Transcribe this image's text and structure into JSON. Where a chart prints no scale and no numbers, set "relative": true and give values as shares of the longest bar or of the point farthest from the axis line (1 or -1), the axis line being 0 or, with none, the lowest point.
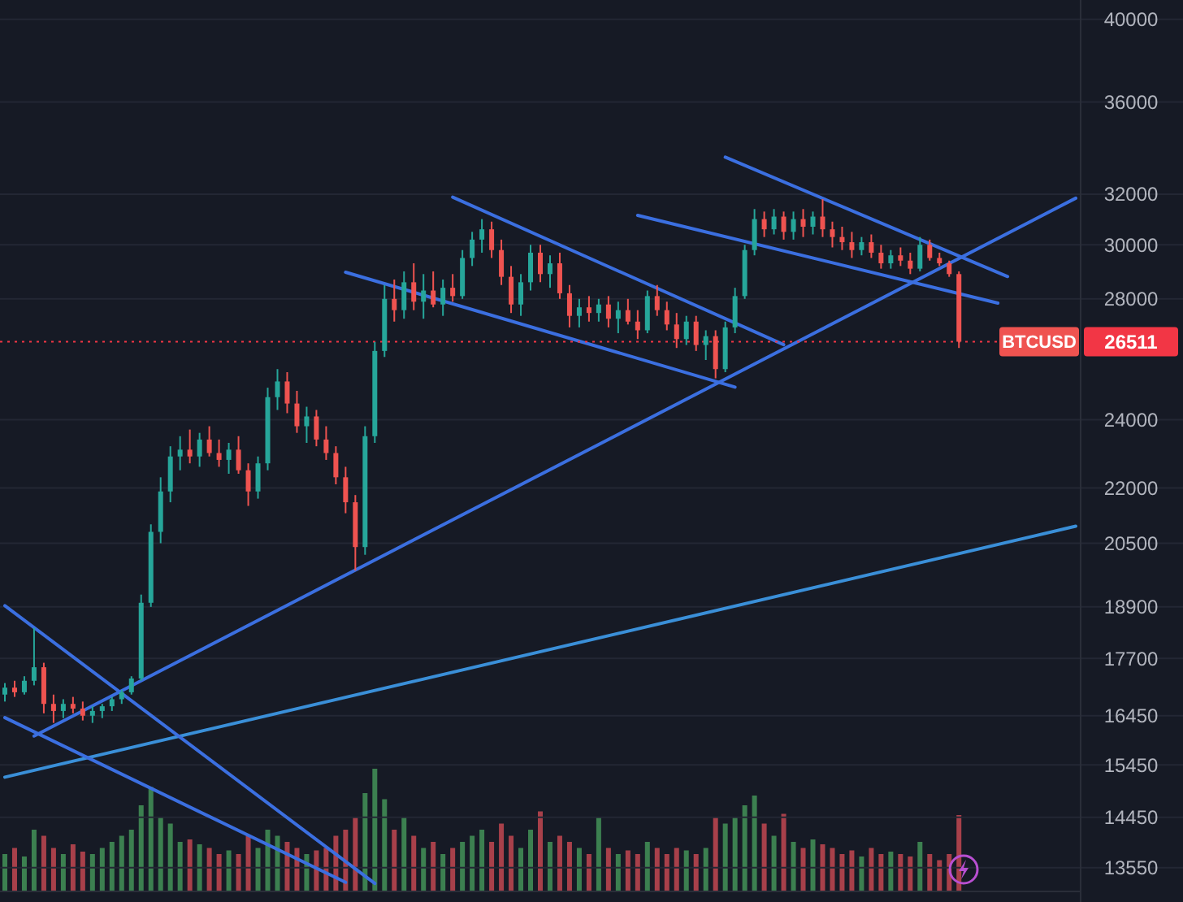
{
  "chart_data": [
    {
      "type": "candlestick",
      "log": true,
      "grid": "y",
      "ylim": [
        12970,
        41000
      ],
      "categories": [
        null,
        null,
        null,
        null,
        null,
        null,
        null,
        null,
        null,
        null,
        null,
        null,
        null,
        null,
        null,
        null,
        null,
        null,
        null,
        null,
        null,
        null,
        null,
        null,
        null,
        null,
        null,
        null,
        null,
        null,
        null,
        null,
        null,
        null,
        null,
        null,
        null,
        null,
        null,
        null,
        null,
        null,
        null,
        null,
        null,
        null,
        null,
        null,
        null,
        null,
        null,
        null,
        null,
        null,
        null,
        null,
        null,
        null,
        null,
        null,
        null,
        null,
        null,
        null,
        null,
        null,
        null,
        null,
        null,
        null,
        null,
        null,
        null,
        null,
        null,
        null,
        null,
        null,
        null,
        null,
        null,
        null,
        null,
        null,
        null,
        null,
        null,
        null,
        null,
        null,
        null,
        null,
        null,
        null,
        null,
        null,
        null,
        null,
        null,
        null,
        null,
        null,
        null,
        null,
        null,
        null,
        null,
        null,
        null,
        null,
        null
      ],
      "yticks": [
        13550,
        14450,
        15450,
        16450,
        17700,
        18900,
        20500,
        22000,
        24000,
        28000,
        30000,
        32000,
        36000,
        40000
      ],
      "ref_lines": [
        {
          "axis": "y",
          "value": 26511,
          "label": "26511",
          "color": "#f23645",
          "line_style": "dotted"
        }
      ],
      "series": [
        {
          "name": "BTCUSD",
          "type": "candlestick",
          "ohlc": [
            [
              16900,
              17150,
              16750,
              17050
            ],
            [
              17050,
              17200,
              16850,
              16950
            ],
            [
              16950,
              17300,
              16900,
              17200
            ],
            [
              17200,
              18400,
              17100,
              17500
            ],
            [
              17500,
              17600,
              16500,
              16700
            ],
            [
              16700,
              16900,
              16300,
              16550
            ],
            [
              16550,
              16800,
              16400,
              16700
            ],
            [
              16700,
              16850,
              16500,
              16600
            ],
            [
              16600,
              16750,
              16350,
              16450
            ],
            [
              16450,
              16650,
              16300,
              16550
            ],
            [
              16550,
              16700,
              16400,
              16650
            ],
            [
              16650,
              16850,
              16550,
              16800
            ],
            [
              16800,
              17000,
              16700,
              16950
            ],
            [
              16950,
              17300,
              16900,
              17250
            ],
            [
              17250,
              19200,
              17200,
              19000
            ],
            [
              19000,
              21000,
              18900,
              20800
            ],
            [
              20800,
              22300,
              20500,
              21900
            ],
            [
              21900,
              23200,
              21600,
              22900
            ],
            [
              22900,
              23500,
              22500,
              23100
            ],
            [
              23100,
              23700,
              22700,
              22900
            ],
            [
              22900,
              23600,
              22600,
              23400
            ],
            [
              23400,
              23800,
              22900,
              23000
            ],
            [
              23000,
              23400,
              22600,
              22800
            ],
            [
              22800,
              23300,
              22400,
              23100
            ],
            [
              23100,
              23500,
              22400,
              22500
            ],
            [
              22500,
              22700,
              21500,
              21900
            ],
            [
              21900,
              22900,
              21700,
              22700
            ],
            [
              22700,
              25000,
              22500,
              24700
            ],
            [
              24700,
              25600,
              24300,
              25200
            ],
            [
              25200,
              25500,
              24200,
              24500
            ],
            [
              24500,
              24900,
              23600,
              23800
            ],
            [
              23800,
              24400,
              23300,
              24100
            ],
            [
              24100,
              24300,
              23200,
              23400
            ],
            [
              23400,
              23800,
              22800,
              23000
            ],
            [
              23000,
              23200,
              22100,
              22300
            ],
            [
              22300,
              22600,
              21300,
              21600
            ],
            [
              21600,
              21800,
              19800,
              20400
            ],
            [
              20400,
              23800,
              20200,
              23500
            ],
            [
              23500,
              26500,
              23300,
              26200
            ],
            [
              26200,
              28500,
              26000,
              28000
            ],
            [
              28000,
              28700,
              27200,
              27600
            ],
            [
              27600,
              29000,
              27300,
              28600
            ],
            [
              28600,
              29300,
              27600,
              27900
            ],
            [
              27900,
              28900,
              27300,
              28300
            ],
            [
              28300,
              29000,
              27700,
              27800
            ],
            [
              27800,
              28700,
              27400,
              28400
            ],
            [
              28400,
              28900,
              27900,
              28100
            ],
            [
              28100,
              29800,
              28000,
              29500
            ],
            [
              29500,
              30500,
              29200,
              30200
            ],
            [
              30200,
              31000,
              29700,
              30600
            ],
            [
              30600,
              30900,
              29500,
              29800
            ],
            [
              29800,
              30200,
              28500,
              28800
            ],
            [
              28800,
              29200,
              27500,
              27800
            ],
            [
              27800,
              28900,
              27400,
              28600
            ],
            [
              28600,
              30000,
              28300,
              29700
            ],
            [
              29700,
              30000,
              28600,
              28900
            ],
            [
              28900,
              29600,
              28400,
              29300
            ],
            [
              29300,
              29700,
              28000,
              28200
            ],
            [
              28200,
              28500,
              27000,
              27400
            ],
            [
              27400,
              28000,
              27000,
              27700
            ],
            [
              27700,
              28100,
              27200,
              27500
            ],
            [
              27500,
              28000,
              27200,
              27800
            ],
            [
              27800,
              28100,
              27000,
              27300
            ],
            [
              27300,
              27900,
              26800,
              27600
            ],
            [
              27600,
              28000,
              27100,
              27200
            ],
            [
              27200,
              27600,
              26600,
              26900
            ],
            [
              26900,
              28300,
              26800,
              28100
            ],
            [
              28100,
              28500,
              27400,
              27600
            ],
            [
              27600,
              27900,
              26900,
              27100
            ],
            [
              27100,
              27500,
              26300,
              26600
            ],
            [
              26600,
              27400,
              26400,
              27200
            ],
            [
              27200,
              27400,
              26200,
              26400
            ],
            [
              26400,
              26900,
              25900,
              26700
            ],
            [
              26700,
              26900,
              25300,
              25600
            ],
            [
              25600,
              27200,
              25500,
              27000
            ],
            [
              27000,
              28400,
              26800,
              28100
            ],
            [
              28100,
              30000,
              28000,
              29800
            ],
            [
              29800,
              31400,
              29600,
              31000
            ],
            [
              31000,
              31300,
              30300,
              30600
            ],
            [
              30600,
              31400,
              30400,
              31100
            ],
            [
              31100,
              31300,
              30200,
              30500
            ],
            [
              30500,
              31300,
              30200,
              31000
            ],
            [
              31000,
              31400,
              30300,
              30700
            ],
            [
              30700,
              31300,
              30400,
              31100
            ],
            [
              31100,
              31800,
              30300,
              30600
            ],
            [
              30600,
              30900,
              29900,
              30300
            ],
            [
              30300,
              30700,
              29800,
              30100
            ],
            [
              30100,
              30500,
              29500,
              29800
            ],
            [
              29800,
              30300,
              29600,
              30100
            ],
            [
              30100,
              30400,
              29500,
              29700
            ],
            [
              29700,
              30000,
              29100,
              29300
            ],
            [
              29300,
              29800,
              29100,
              29600
            ],
            [
              29600,
              29900,
              29200,
              29400
            ],
            [
              29400,
              29700,
              28900,
              29100
            ],
            [
              29100,
              30300,
              29000,
              30000
            ],
            [
              30000,
              30200,
              29400,
              29500
            ],
            [
              29500,
              29700,
              29200,
              29300
            ],
            [
              29300,
              29400,
              28800,
              28900
            ],
            [
              28900,
              29000,
              26300,
              26511
            ],
            null,
            null,
            null,
            null,
            null,
            null,
            null,
            null,
            null,
            null,
            null,
            null
          ],
          "colors": [
            "#26a69a",
            "#ef5350",
            "#26a69a",
            "#26a69a",
            "#ef5350",
            "#ef5350",
            "#26a69a",
            "#ef5350",
            "#ef5350",
            "#26a69a",
            "#26a69a",
            "#26a69a",
            "#26a69a",
            "#26a69a",
            "#26a69a",
            "#26a69a",
            "#26a69a",
            "#26a69a",
            "#26a69a",
            "#ef5350",
            "#26a69a",
            "#ef5350",
            "#ef5350",
            "#26a69a",
            "#ef5350",
            "#ef5350",
            "#26a69a",
            "#26a69a",
            "#26a69a",
            "#ef5350",
            "#ef5350",
            "#26a69a",
            "#ef5350",
            "#ef5350",
            "#ef5350",
            "#ef5350",
            "#ef5350",
            "#26a69a",
            "#26a69a",
            "#26a69a",
            "#ef5350",
            "#26a69a",
            "#ef5350",
            "#26a69a",
            "#ef5350",
            "#26a69a",
            "#ef5350",
            "#26a69a",
            "#26a69a",
            "#26a69a",
            "#ef5350",
            "#ef5350",
            "#ef5350",
            "#26a69a",
            "#26a69a",
            "#ef5350",
            "#26a69a",
            "#ef5350",
            "#ef5350",
            "#26a69a",
            "#ef5350",
            "#26a69a",
            "#ef5350",
            "#26a69a",
            "#ef5350",
            "#ef5350",
            "#26a69a",
            "#ef5350",
            "#ef5350",
            "#ef5350",
            "#26a69a",
            "#ef5350",
            "#26a69a",
            "#ef5350",
            "#26a69a",
            "#26a69a",
            "#26a69a",
            "#26a69a",
            "#ef5350",
            "#26a69a",
            "#ef5350",
            "#26a69a",
            "#ef5350",
            "#26a69a",
            "#ef5350",
            "#ef5350",
            "#ef5350",
            "#ef5350",
            "#26a69a",
            "#ef5350",
            "#ef5350",
            "#26a69a",
            "#ef5350",
            "#ef5350",
            "#26a69a",
            "#ef5350",
            "#ef5350",
            "#ef5350",
            "#ef5350",
            null,
            null,
            null,
            null,
            null,
            null,
            null,
            null,
            null,
            null,
            null,
            null
          ]
        },
        {
          "type": "line",
          "color": "#3b6fe0",
          "values": [
            null,
            null,
            null,
            16030,
            null,
            null,
            null,
            null,
            null,
            null,
            null,
            null,
            null,
            null,
            null,
            null,
            null,
            null,
            null,
            null,
            null,
            null,
            null,
            null,
            null,
            null,
            null,
            null,
            null,
            null,
            null,
            null,
            null,
            null,
            null,
            null,
            null,
            null,
            null,
            null,
            null,
            null,
            null,
            null,
            null,
            null,
            null,
            null,
            null,
            null,
            null,
            null,
            null,
            null,
            null,
            null,
            null,
            null,
            null,
            null,
            null,
            null,
            null,
            null,
            null,
            null,
            null,
            null,
            null,
            null,
            null,
            null,
            null,
            null,
            null,
            null,
            null,
            null,
            null,
            null,
            null,
            null,
            null,
            null,
            null,
            null,
            null,
            null,
            null,
            null,
            null,
            null,
            null,
            null,
            null,
            null,
            null,
            null,
            null,
            null,
            null,
            null,
            null,
            null,
            null,
            null,
            null,
            null,
            null,
            null,
            31840
          ]
        },
        {
          "type": "line",
          "color": "#3a8fd8",
          "values": [
            15210,
            null,
            null,
            null,
            null,
            null,
            null,
            null,
            null,
            null,
            null,
            null,
            null,
            null,
            null,
            null,
            null,
            null,
            null,
            null,
            null,
            null,
            null,
            null,
            null,
            null,
            null,
            null,
            null,
            null,
            null,
            null,
            null,
            null,
            null,
            null,
            null,
            null,
            null,
            null,
            null,
            null,
            null,
            null,
            null,
            null,
            null,
            null,
            null,
            null,
            null,
            null,
            null,
            null,
            null,
            null,
            null,
            null,
            null,
            null,
            null,
            null,
            null,
            null,
            null,
            null,
            null,
            null,
            null,
            null,
            null,
            null,
            null,
            null,
            null,
            null,
            null,
            null,
            null,
            null,
            null,
            null,
            null,
            null,
            null,
            null,
            null,
            null,
            null,
            null,
            null,
            null,
            null,
            null,
            null,
            null,
            null,
            null,
            null,
            null,
            null,
            null,
            null,
            null,
            null,
            null,
            null,
            null,
            null,
            null,
            20950
          ]
        },
        {
          "type": "line",
          "color": "#3b6fe0",
          "values": [
            18930,
            null,
            null,
            null,
            null,
            null,
            null,
            null,
            null,
            null,
            null,
            null,
            null,
            null,
            null,
            null,
            null,
            null,
            null,
            null,
            null,
            null,
            null,
            null,
            null,
            null,
            null,
            null,
            null,
            null,
            null,
            null,
            null,
            null,
            null,
            null,
            null,
            null,
            13280,
            null,
            null,
            null,
            null,
            null,
            null,
            null,
            null,
            null,
            null,
            null,
            null,
            null,
            null,
            null,
            null,
            null,
            null,
            null,
            null,
            null,
            null,
            null,
            null,
            null,
            null,
            null,
            null,
            null,
            null,
            null,
            null,
            null,
            null,
            null,
            null,
            null,
            null,
            null,
            null,
            null,
            null,
            null,
            null,
            null,
            null,
            null,
            null,
            null,
            null,
            null,
            null,
            null,
            null,
            null,
            null,
            null,
            null,
            null,
            null,
            null,
            null,
            null,
            null,
            null,
            null,
            null,
            null,
            null,
            null,
            null,
            null
          ]
        },
        {
          "type": "line",
          "color": "#3b6fe0",
          "values": [
            16410,
            null,
            null,
            null,
            null,
            null,
            null,
            null,
            null,
            null,
            null,
            null,
            null,
            null,
            null,
            null,
            null,
            null,
            null,
            null,
            null,
            null,
            null,
            null,
            null,
            null,
            null,
            null,
            null,
            null,
            null,
            null,
            null,
            null,
            null,
            13300,
            null,
            null,
            null,
            null,
            null,
            null,
            null,
            null,
            null,
            null,
            null,
            null,
            null,
            null,
            null,
            null,
            null,
            null,
            null,
            null,
            null,
            null,
            null,
            null,
            null,
            null,
            null,
            null,
            null,
            null,
            null,
            null,
            null,
            null,
            null,
            null,
            null,
            null,
            null,
            null,
            null,
            null,
            null,
            null,
            null,
            null,
            null,
            null,
            null,
            null,
            null,
            null,
            null,
            null,
            null,
            null,
            null,
            null,
            null,
            null,
            null,
            null,
            null,
            null,
            null,
            null,
            null,
            null,
            null,
            null,
            null,
            null,
            null,
            null,
            null
          ]
        },
        {
          "type": "line",
          "color": "#3b6fe0",
          "values": [
            null,
            null,
            null,
            null,
            null,
            null,
            null,
            null,
            null,
            null,
            null,
            null,
            null,
            null,
            null,
            null,
            null,
            null,
            null,
            null,
            null,
            null,
            null,
            null,
            null,
            null,
            null,
            null,
            null,
            null,
            null,
            null,
            null,
            null,
            null,
            null,
            null,
            null,
            null,
            null,
            null,
            null,
            null,
            null,
            null,
            null,
            31880,
            null,
            null,
            null,
            null,
            null,
            null,
            null,
            null,
            null,
            null,
            null,
            null,
            null,
            null,
            null,
            null,
            null,
            null,
            null,
            null,
            null,
            null,
            null,
            null,
            null,
            null,
            null,
            null,
            null,
            null,
            null,
            null,
            null,
            26410,
            null,
            null,
            null,
            null,
            null,
            null,
            null,
            null,
            null,
            null,
            null,
            null,
            null,
            null,
            null,
            null,
            null,
            null,
            null,
            null,
            null,
            null,
            null,
            null,
            null,
            null,
            null,
            null,
            null,
            null
          ]
        },
        {
          "type": "line",
          "color": "#3b6fe0",
          "values": [
            null,
            null,
            null,
            null,
            null,
            null,
            null,
            null,
            null,
            null,
            null,
            null,
            null,
            null,
            null,
            null,
            null,
            null,
            null,
            null,
            null,
            null,
            null,
            null,
            null,
            null,
            null,
            null,
            null,
            null,
            null,
            null,
            null,
            null,
            null,
            28970,
            null,
            null,
            null,
            null,
            null,
            null,
            null,
            null,
            null,
            null,
            null,
            null,
            null,
            null,
            null,
            null,
            null,
            null,
            null,
            null,
            null,
            null,
            null,
            null,
            null,
            null,
            null,
            null,
            null,
            null,
            null,
            null,
            null,
            null,
            null,
            null,
            null,
            null,
            null,
            25020,
            null,
            null,
            null,
            null,
            null,
            null,
            null,
            null,
            null,
            null,
            null,
            null,
            null,
            null,
            null,
            null,
            null,
            null,
            null,
            null,
            null,
            null,
            null,
            null,
            null,
            null,
            null,
            null,
            null,
            null,
            null,
            null,
            null,
            null,
            null
          ]
        },
        {
          "type": "line",
          "color": "#3b6fe0",
          "values": [
            null,
            null,
            null,
            null,
            null,
            null,
            null,
            null,
            null,
            null,
            null,
            null,
            null,
            null,
            null,
            null,
            null,
            null,
            null,
            null,
            null,
            null,
            null,
            null,
            null,
            null,
            null,
            null,
            null,
            null,
            null,
            null,
            null,
            null,
            null,
            null,
            null,
            null,
            null,
            null,
            null,
            null,
            null,
            null,
            null,
            null,
            null,
            null,
            null,
            null,
            null,
            null,
            null,
            null,
            null,
            null,
            null,
            null,
            null,
            null,
            null,
            null,
            null,
            null,
            null,
            null,
            null,
            null,
            null,
            null,
            null,
            null,
            null,
            null,
            33550,
            null,
            null,
            null,
            null,
            null,
            null,
            null,
            null,
            null,
            null,
            null,
            null,
            null,
            null,
            null,
            null,
            null,
            null,
            null,
            null,
            null,
            null,
            null,
            null,
            null,
            null,
            null,
            null,
            28810,
            null,
            null,
            null,
            null,
            null,
            null,
            null
          ]
        },
        {
          "type": "line",
          "color": "#3b6fe0",
          "values": [
            null,
            null,
            null,
            null,
            null,
            null,
            null,
            null,
            null,
            null,
            null,
            null,
            null,
            null,
            null,
            null,
            null,
            null,
            null,
            null,
            null,
            null,
            null,
            null,
            null,
            null,
            null,
            null,
            null,
            null,
            null,
            null,
            null,
            null,
            null,
            null,
            null,
            null,
            null,
            null,
            null,
            null,
            null,
            null,
            null,
            null,
            null,
            null,
            null,
            null,
            null,
            null,
            null,
            null,
            null,
            null,
            null,
            null,
            null,
            null,
            null,
            null,
            null,
            null,
            null,
            31150,
            null,
            null,
            null,
            null,
            null,
            null,
            null,
            null,
            null,
            null,
            null,
            null,
            null,
            null,
            null,
            null,
            null,
            null,
            null,
            null,
            null,
            null,
            null,
            null,
            null,
            null,
            null,
            null,
            null,
            null,
            null,
            null,
            null,
            null,
            null,
            null,
            27850,
            null,
            null,
            null,
            null,
            null,
            null,
            null,
            null
          ]
        }
      ]
    },
    {
      "type": "bar",
      "relative": true,
      "categories": [
        null,
        null,
        null,
        null,
        null,
        null,
        null,
        null,
        null,
        null,
        null,
        null,
        null,
        null,
        null,
        null,
        null,
        null,
        null,
        null,
        null,
        null,
        null,
        null,
        null,
        null,
        null,
        null,
        null,
        null,
        null,
        null,
        null,
        null,
        null,
        null,
        null,
        null,
        null,
        null,
        null,
        null,
        null,
        null,
        null,
        null,
        null,
        null,
        null,
        null,
        null,
        null,
        null,
        null,
        null,
        null,
        null,
        null,
        null,
        null,
        null,
        null,
        null,
        null,
        null,
        null,
        null,
        null,
        null,
        null,
        null,
        null,
        null,
        null,
        null,
        null,
        null,
        null,
        null,
        null,
        null,
        null,
        null,
        null,
        null,
        null,
        null,
        null,
        null,
        null,
        null,
        null,
        null,
        null,
        null,
        null,
        null,
        null,
        null,
        null,
        null,
        null,
        null,
        null,
        null,
        null,
        null,
        null,
        null,
        null,
        null
      ],
      "values": [
        0.3,
        0.35,
        0.28,
        0.5,
        0.45,
        0.35,
        0.3,
        0.38,
        0.32,
        0.3,
        0.35,
        0.4,
        0.45,
        0.5,
        0.7,
        0.85,
        0.6,
        0.55,
        0.4,
        0.42,
        0.38,
        0.35,
        0.3,
        0.33,
        0.3,
        0.45,
        0.35,
        0.5,
        0.45,
        0.4,
        0.35,
        0.3,
        0.33,
        0.35,
        0.45,
        0.5,
        0.6,
        0.8,
        1,
        0.75,
        0.5,
        0.6,
        0.45,
        0.35,
        0.4,
        0.3,
        0.35,
        0.4,
        0.45,
        0.5,
        0.4,
        0.55,
        0.45,
        0.35,
        0.5,
        0.65,
        0.4,
        0.45,
        0.4,
        0.35,
        0.3,
        0.6,
        0.35,
        0.3,
        0.33,
        0.3,
        0.4,
        0.35,
        0.3,
        0.35,
        0.33,
        0.3,
        0.35,
        0.6,
        0.55,
        0.6,
        0.7,
        0.78,
        0.55,
        0.45,
        0.63,
        0.4,
        0.35,
        0.42,
        0.38,
        0.35,
        0.3,
        0.33,
        0.28,
        0.35,
        0.3,
        0.32,
        0.3,
        0.28,
        0.4,
        0.3,
        0.25,
        0.3,
        0.62,
        null,
        null,
        null,
        null,
        null,
        null,
        null,
        null,
        null,
        null,
        null,
        null
      ],
      "colors": [
        "#3c8050",
        "#a8404a",
        "#3c8050",
        "#3c8050",
        "#a8404a",
        "#a8404a",
        "#3c8050",
        "#a8404a",
        "#a8404a",
        "#3c8050",
        "#3c8050",
        "#3c8050",
        "#3c8050",
        "#3c8050",
        "#3c8050",
        "#3c8050",
        "#3c8050",
        "#3c8050",
        "#3c8050",
        "#a8404a",
        "#3c8050",
        "#a8404a",
        "#a8404a",
        "#3c8050",
        "#a8404a",
        "#a8404a",
        "#3c8050",
        "#3c8050",
        "#3c8050",
        "#a8404a",
        "#a8404a",
        "#3c8050",
        "#a8404a",
        "#a8404a",
        "#a8404a",
        "#a8404a",
        "#a8404a",
        "#3c8050",
        "#3c8050",
        "#3c8050",
        "#a8404a",
        "#3c8050",
        "#a8404a",
        "#3c8050",
        "#a8404a",
        "#3c8050",
        "#a8404a",
        "#3c8050",
        "#3c8050",
        "#3c8050",
        "#a8404a",
        "#a8404a",
        "#a8404a",
        "#3c8050",
        "#3c8050",
        "#a8404a",
        "#3c8050",
        "#a8404a",
        "#a8404a",
        "#3c8050",
        "#a8404a",
        "#3c8050",
        "#a8404a",
        "#3c8050",
        "#a8404a",
        "#a8404a",
        "#3c8050",
        "#a8404a",
        "#a8404a",
        "#a8404a",
        "#3c8050",
        "#a8404a",
        "#3c8050",
        "#a8404a",
        "#3c8050",
        "#3c8050",
        "#3c8050",
        "#3c8050",
        "#a8404a",
        "#3c8050",
        "#a8404a",
        "#3c8050",
        "#a8404a",
        "#3c8050",
        "#a8404a",
        "#a8404a",
        "#a8404a",
        "#a8404a",
        "#3c8050",
        "#a8404a",
        "#a8404a",
        "#3c8050",
        "#a8404a",
        "#a8404a",
        "#3c8050",
        "#a8404a",
        "#a8404a",
        "#a8404a",
        "#a8404a",
        null,
        null,
        null,
        null,
        null,
        null,
        null,
        null,
        null,
        null,
        null,
        null
      ]
    }
  ]
}
